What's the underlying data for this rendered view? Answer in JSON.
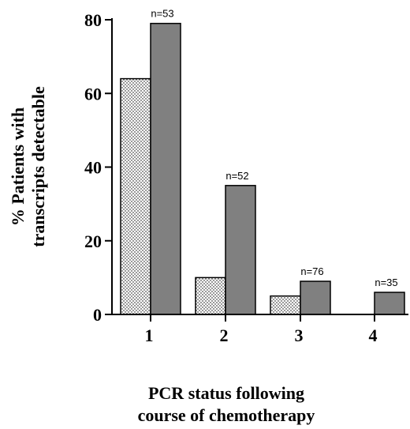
{
  "chart_data": {
    "type": "bar",
    "categories": [
      "1",
      "2",
      "3",
      "4"
    ],
    "series": [
      {
        "values": [
          64,
          10,
          5,
          0
        ],
        "pattern": "dotted",
        "color": "#ffffff"
      },
      {
        "values": [
          79,
          35,
          9,
          6
        ],
        "pattern": "solid",
        "color": "#808080"
      }
    ],
    "annotations": [
      "n=53",
      "n=52",
      "n=76",
      "n=35"
    ],
    "ylim": [
      0,
      80
    ],
    "yticks": [
      "0",
      "20",
      "40",
      "60",
      "80"
    ],
    "ylabel_lines": [
      "% Patients with",
      "transcripts detectable"
    ],
    "xlabel_lines": [
      "PCR status following",
      "course of chemotherapy"
    ],
    "grid": false,
    "legend": "none"
  }
}
